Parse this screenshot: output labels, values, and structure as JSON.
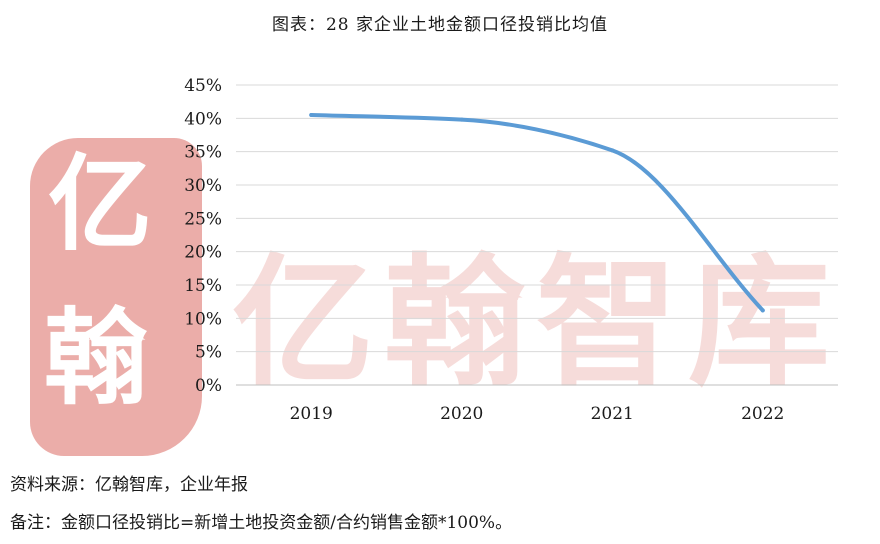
{
  "colors": {
    "line": "#5B9BD5",
    "gridline": "#D9D9D9",
    "axis": "#BFBFBF",
    "watermark": "#E9A5A0"
  },
  "watermark": {
    "seal_chars": [
      "亿",
      "翰"
    ],
    "text": "亿翰智库"
  },
  "chart_data": {
    "type": "line",
    "title": "图表：28 家企业土地金额口径投销比均值",
    "xlabel": "",
    "ylabel": "",
    "categories": [
      "2019",
      "2020",
      "2021",
      "2022"
    ],
    "series": [
      {
        "values": [
          40.5,
          39.8,
          35.2,
          11.2
        ]
      }
    ],
    "ylim": [
      0,
      45
    ],
    "yticks": [
      "0%",
      "5%",
      "10%",
      "15%",
      "20%",
      "25%",
      "30%",
      "35%",
      "40%",
      "45%"
    ],
    "ytick_values": [
      0,
      5,
      10,
      15,
      20,
      25,
      30,
      35,
      40,
      45
    ],
    "grid": true,
    "smooth": true,
    "legend": "none"
  },
  "footer": {
    "source": "资料来源：亿翰智库，企业年报",
    "note": "备注：金额口径投销比=新增土地投资金额/合约销售金额*100%。"
  }
}
